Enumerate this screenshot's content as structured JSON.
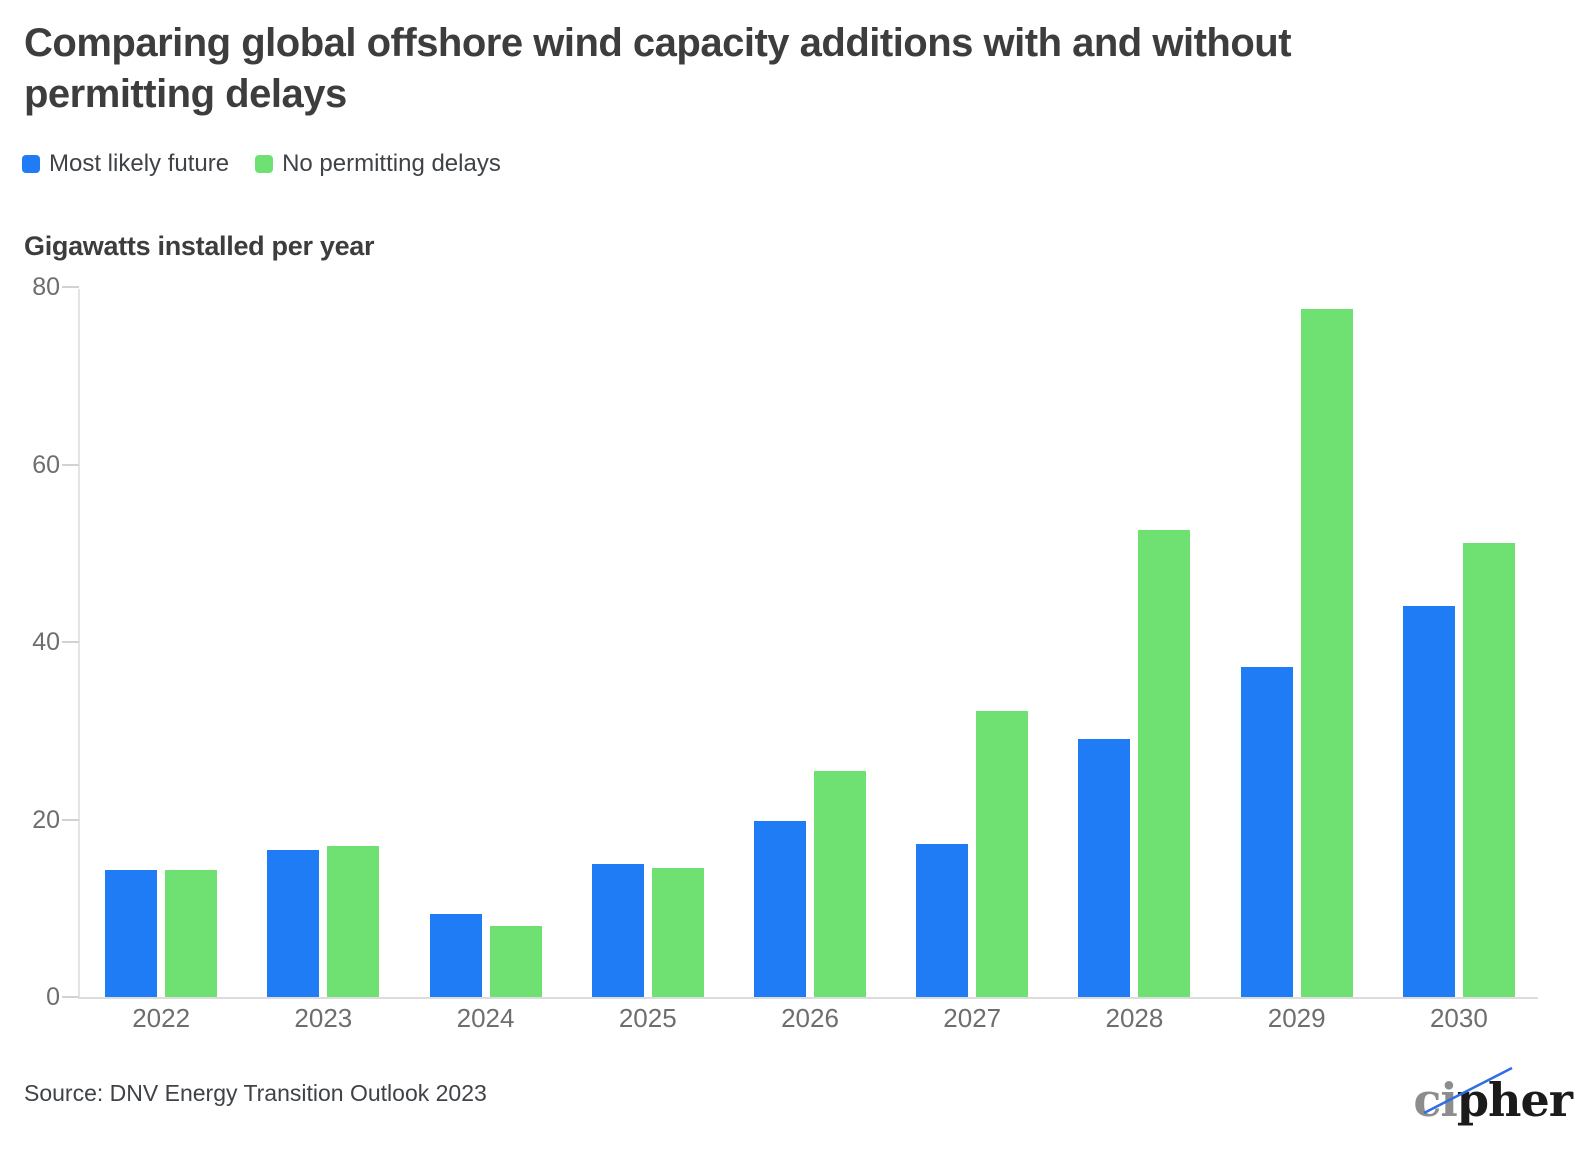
{
  "title": "Comparing global offshore wind capacity additions with and without permitting delays",
  "legend": {
    "items": [
      {
        "label": "Most likely future",
        "color": "#1f7cf4"
      },
      {
        "label": "No permitting delays",
        "color": "#6fe072"
      }
    ]
  },
  "axis_title": "Gigawatts installed per year",
  "source": "Source: DNV Energy Transition Outlook 2023",
  "logo": {
    "gray_part": "ci",
    "dark_part": "pher",
    "line_color": "#2e6fe4"
  },
  "colors": {
    "blue_series": "#1f7cf4",
    "green_series": "#6fe072",
    "title_text": "#3d3d3d",
    "axis_text": "#6e6e6e",
    "axis_line": "#dcdcdc"
  },
  "chart_data": {
    "type": "bar",
    "categories": [
      "2022",
      "2023",
      "2024",
      "2025",
      "2026",
      "2027",
      "2028",
      "2029",
      "2030"
    ],
    "series": [
      {
        "name": "Most likely future",
        "color": "#1f7cf4",
        "values": [
          14.3,
          16.6,
          9.3,
          15.0,
          19.8,
          17.2,
          29.1,
          37.2,
          44.1
        ]
      },
      {
        "name": "No permitting delays",
        "color": "#6fe072",
        "values": [
          14.3,
          17.0,
          8.0,
          14.5,
          25.5,
          32.2,
          52.6,
          77.5,
          51.2
        ]
      }
    ],
    "title": "Comparing global offshore wind capacity additions with and without permitting delays",
    "xlabel": "",
    "ylabel": "Gigawatts installed per year",
    "ylim": [
      0,
      80
    ],
    "yticks": [
      0,
      20,
      40,
      60,
      80
    ],
    "grid": false,
    "legend_position": "top-left"
  }
}
